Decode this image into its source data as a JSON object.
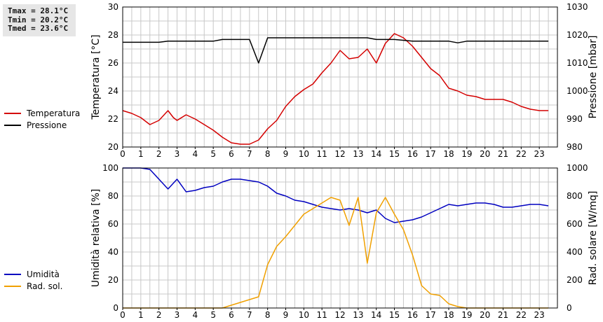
{
  "stats": {
    "tmax": "Tmax = 28.1°C",
    "tmin": "Tmin = 20.2°C",
    "tmed": "Tmed = 23.6°C"
  },
  "colors": {
    "temperature": "#d40000",
    "pressure": "#000000",
    "humidity": "#0000c0",
    "radiation": "#f0a000",
    "grid": "#c8c8c8"
  },
  "chart_data": [
    {
      "type": "line",
      "xlabel": "",
      "ylabel": "Temperatura [°C]",
      "y2label": "Pressione [mbar]",
      "xlim": [
        0,
        24
      ],
      "ylim": [
        20,
        30
      ],
      "y2lim": [
        980,
        1030
      ],
      "xticks": [
        "0",
        "1",
        "2",
        "3",
        "4",
        "5",
        "6",
        "7",
        "8",
        "9",
        "10",
        "11",
        "12",
        "13",
        "14",
        "15",
        "16",
        "17",
        "18",
        "19",
        "20",
        "21",
        "22",
        "23"
      ],
      "yticks": [
        "20",
        "22",
        "24",
        "26",
        "28",
        "30"
      ],
      "y2ticks": [
        "980",
        "990",
        "1000",
        "1010",
        "1020",
        "1030"
      ],
      "grid": true,
      "legend_position": "left",
      "series": [
        {
          "name": "Temperatura",
          "axis": "left",
          "color": "#d40000",
          "x": [
            0,
            0.5,
            1,
            1.5,
            2,
            2.5,
            2.8,
            3,
            3.5,
            4,
            4.5,
            5,
            5.5,
            6,
            6.5,
            7,
            7.5,
            8,
            8.5,
            9,
            9.5,
            10,
            10.5,
            11,
            11.5,
            12,
            12.5,
            13,
            13.5,
            14,
            14.5,
            15,
            15.5,
            16,
            16.5,
            17,
            17.5,
            18,
            18.5,
            19,
            19.5,
            20,
            20.5,
            21,
            21.5,
            22,
            22.5,
            23,
            23.5
          ],
          "values": [
            22.6,
            22.4,
            22.1,
            21.6,
            21.9,
            22.6,
            22.1,
            21.9,
            22.3,
            22.0,
            21.6,
            21.2,
            20.7,
            20.3,
            20.2,
            20.2,
            20.5,
            21.3,
            21.9,
            22.9,
            23.6,
            24.1,
            24.5,
            25.3,
            26.0,
            26.9,
            26.3,
            26.4,
            27.0,
            26.0,
            27.4,
            28.1,
            27.8,
            27.2,
            26.4,
            25.6,
            25.1,
            24.2,
            24.0,
            23.7,
            23.6,
            23.4,
            23.4,
            23.4,
            23.2,
            22.9,
            22.7,
            22.6,
            22.6
          ]
        },
        {
          "name": "Pressione",
          "axis": "right",
          "color": "#000000",
          "x": [
            0,
            1,
            2,
            2.5,
            3,
            4,
            5,
            5.5,
            6,
            7,
            7.5,
            8,
            9,
            10,
            11,
            12,
            13,
            13.5,
            14,
            15,
            16,
            17,
            18,
            18.5,
            19,
            20,
            21,
            22,
            23,
            23.5
          ],
          "values": [
            1017.4,
            1017.4,
            1017.4,
            1017.8,
            1017.8,
            1017.8,
            1017.8,
            1018.4,
            1018.4,
            1018.4,
            1010.0,
            1019.0,
            1019.0,
            1019.0,
            1019.0,
            1019.0,
            1019.0,
            1019.0,
            1018.4,
            1018.4,
            1017.8,
            1017.8,
            1017.8,
            1017.2,
            1017.8,
            1017.8,
            1017.8,
            1017.8,
            1017.8,
            1017.8
          ]
        }
      ]
    },
    {
      "type": "line",
      "xlabel": "",
      "ylabel": "Umidità relativa [%]",
      "y2label": "Rad. solare [W/mq]",
      "xlim": [
        0,
        24
      ],
      "ylim": [
        0,
        100
      ],
      "y2lim": [
        0,
        1000
      ],
      "xticks": [
        "0",
        "1",
        "2",
        "3",
        "4",
        "5",
        "6",
        "7",
        "8",
        "9",
        "10",
        "11",
        "12",
        "13",
        "14",
        "15",
        "16",
        "17",
        "18",
        "19",
        "20",
        "21",
        "22",
        "23"
      ],
      "yticks": [
        "0",
        "20",
        "40",
        "60",
        "80",
        "100"
      ],
      "y2ticks": [
        "0",
        "200",
        "400",
        "600",
        "800",
        "1000"
      ],
      "grid": true,
      "legend_position": "left",
      "series": [
        {
          "name": "Umidità",
          "axis": "left",
          "color": "#0000c0",
          "x": [
            0,
            0.5,
            1,
            1.5,
            2,
            2.5,
            3,
            3.5,
            4,
            4.5,
            5,
            5.5,
            6,
            6.5,
            7,
            7.5,
            8,
            8.5,
            9,
            9.5,
            10,
            10.5,
            11,
            11.5,
            12,
            12.5,
            13,
            13.5,
            14,
            14.5,
            15,
            15.5,
            16,
            16.5,
            17,
            17.5,
            18,
            18.5,
            19,
            19.5,
            20,
            20.5,
            21,
            21.5,
            22,
            22.5,
            23,
            23.5
          ],
          "values": [
            100,
            100,
            100,
            99,
            92,
            85,
            92,
            83,
            84,
            86,
            87,
            90,
            92,
            92,
            91,
            90,
            87,
            82,
            80,
            77,
            76,
            74,
            72,
            71,
            70,
            71,
            70,
            68,
            70,
            64,
            61,
            62,
            63,
            65,
            68,
            71,
            74,
            73,
            74,
            75,
            75,
            74,
            72,
            72,
            73,
            74,
            74,
            73
          ]
        },
        {
          "name": "Rad. sol.",
          "axis": "right",
          "color": "#f0a000",
          "x": [
            0,
            1,
            2,
            3,
            4,
            5,
            5.5,
            6,
            6.5,
            7,
            7.5,
            8,
            8.5,
            9,
            9.5,
            10,
            10.5,
            11,
            11.5,
            12,
            12.5,
            13,
            13.5,
            14,
            14.5,
            15,
            15.5,
            16,
            16.5,
            17,
            17.5,
            18,
            18.5,
            19,
            20,
            21,
            22,
            23,
            23.5
          ],
          "values": [
            0,
            0,
            0,
            0,
            0,
            0,
            0,
            20,
            40,
            60,
            80,
            310,
            440,
            510,
            590,
            670,
            710,
            750,
            790,
            770,
            590,
            790,
            320,
            680,
            790,
            670,
            560,
            380,
            160,
            100,
            90,
            30,
            10,
            0,
            0,
            0,
            0,
            0,
            0
          ]
        }
      ]
    }
  ]
}
